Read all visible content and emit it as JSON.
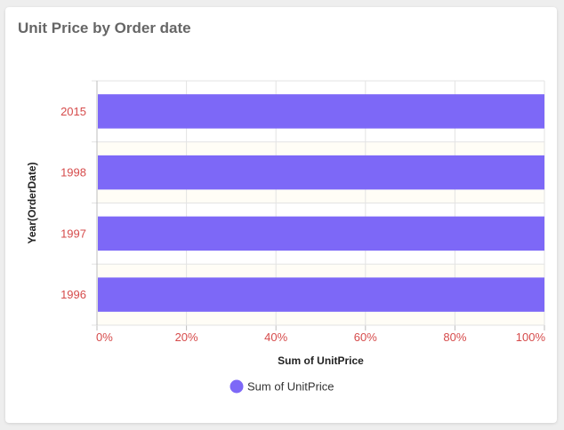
{
  "card": {
    "title": "Unit Price by Order date"
  },
  "colors": {
    "bar": "#7d68f7",
    "band": "#fffdf6",
    "grid": "#e3e3e3",
    "tick_label": "#d64b4b"
  },
  "chart_data": {
    "type": "bar",
    "orientation": "horizontal",
    "stacked": "100%",
    "title": "Unit Price by Order date",
    "xlabel": "Sum of UnitPrice",
    "ylabel": "Year(OrderDate)",
    "categories": [
      "2015",
      "1998",
      "1997",
      "1996"
    ],
    "series": [
      {
        "name": "Sum of UnitPrice",
        "values": [
          100,
          100,
          100,
          100
        ]
      }
    ],
    "xlim": [
      0,
      100
    ],
    "xticks": [
      "0%",
      "20%",
      "40%",
      "60%",
      "80%",
      "100%"
    ],
    "grid": true,
    "legend": {
      "position": "bottom-center",
      "marker": "circle"
    }
  }
}
